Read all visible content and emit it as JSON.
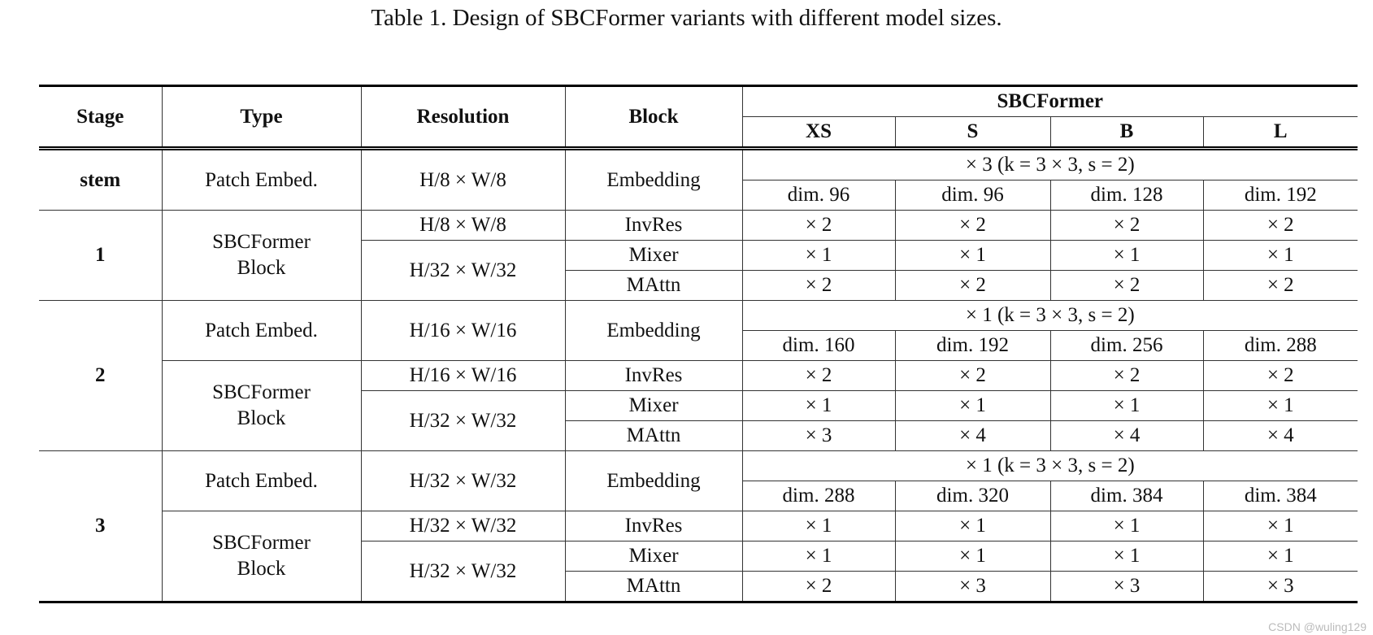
{
  "title": "Table 1. Design of SBCFormer variants with different model sizes.",
  "header": {
    "stage": "Stage",
    "type": "Type",
    "resolution": "Resolution",
    "block": "Block",
    "group": "SBCFormer",
    "variants": [
      "XS",
      "S",
      "B",
      "L"
    ]
  },
  "stages": [
    {
      "stage": "stem",
      "embed": {
        "type": "Patch Embed.",
        "resolution": "H/8 × W/8",
        "block": "Embedding",
        "conv": "× 3 (k = 3 × 3, s = 2)",
        "dims": [
          "dim. 96",
          "dim. 96",
          "dim. 128",
          "dim. 192"
        ]
      }
    },
    {
      "stage": "1",
      "block": {
        "type": "SBCFormer Block",
        "resolutions": [
          "H/8 × W/8",
          "H/32 × W/32"
        ],
        "rows": [
          {
            "block": "InvRes",
            "repeats": [
              "× 2",
              "× 2",
              "× 2",
              "× 2"
            ]
          },
          {
            "block": "Mixer",
            "repeats": [
              "× 1",
              "× 1",
              "× 1",
              "× 1"
            ]
          },
          {
            "block": "MAttn",
            "repeats": [
              "× 2",
              "× 2",
              "× 2",
              "× 2"
            ]
          }
        ]
      }
    },
    {
      "stage": "2",
      "embed": {
        "type": "Patch Embed.",
        "resolution": "H/16 × W/16",
        "block": "Embedding",
        "conv": "× 1 (k = 3 × 3, s = 2)",
        "dims": [
          "dim. 160",
          "dim. 192",
          "dim. 256",
          "dim. 288"
        ]
      },
      "block": {
        "type": "SBCFormer Block",
        "resolutions": [
          "H/16 × W/16",
          "H/32 × W/32"
        ],
        "rows": [
          {
            "block": "InvRes",
            "repeats": [
              "× 2",
              "× 2",
              "× 2",
              "× 2"
            ]
          },
          {
            "block": "Mixer",
            "repeats": [
              "× 1",
              "× 1",
              "× 1",
              "× 1"
            ]
          },
          {
            "block": "MAttn",
            "repeats": [
              "× 3",
              "× 4",
              "× 4",
              "× 4"
            ]
          }
        ]
      }
    },
    {
      "stage": "3",
      "embed": {
        "type": "Patch Embed.",
        "resolution": "H/32 × W/32",
        "block": "Embedding",
        "conv": "× 1 (k = 3 × 3, s = 2)",
        "dims": [
          "dim. 288",
          "dim. 320",
          "dim. 384",
          "dim. 384"
        ]
      },
      "block": {
        "type": "SBCFormer Block",
        "resolutions": [
          "H/32 × W/32",
          "H/32 × W/32"
        ],
        "rows": [
          {
            "block": "InvRes",
            "repeats": [
              "× 1",
              "× 1",
              "× 1",
              "× 1"
            ]
          },
          {
            "block": "Mixer",
            "repeats": [
              "× 1",
              "× 1",
              "× 1",
              "× 1"
            ]
          },
          {
            "block": "MAttn",
            "repeats": [
              "× 2",
              "× 3",
              "× 3",
              "× 3"
            ]
          }
        ]
      }
    }
  ],
  "watermark": "CSDN @wuling129"
}
